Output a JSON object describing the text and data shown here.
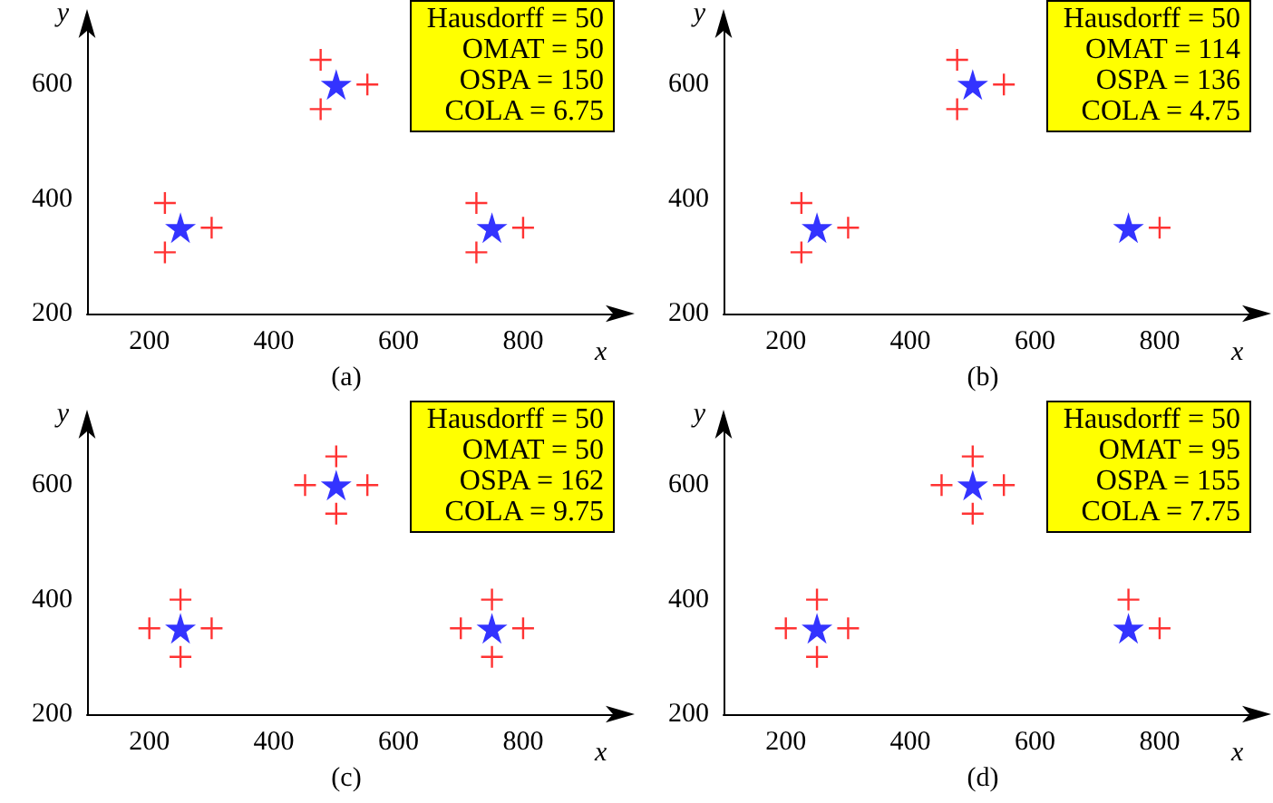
{
  "chart_data": [
    {
      "type": "scatter",
      "title": "(a)",
      "xlabel": "x",
      "ylabel": "y",
      "xlim": [
        100,
        950
      ],
      "ylim": [
        200,
        700
      ],
      "xticks": [
        200,
        400,
        600,
        800
      ],
      "yticks": [
        200,
        400,
        600
      ],
      "grid": false,
      "legend": false,
      "annotations": [
        "Hausdorff = 50",
        "OMAT = 50",
        "OSPA = 150",
        "COLA = 6.75"
      ],
      "series": [
        {
          "color": "#0000ff",
          "marker": "star",
          "x": [
            250,
            500,
            750
          ],
          "values": [
            350,
            600,
            350
          ]
        },
        {
          "color": "#ff0000",
          "marker": "cross",
          "x": [
            300,
            225,
            225,
            550,
            475,
            475,
            800,
            725,
            725
          ],
          "values": [
            350,
            393,
            307,
            600,
            643,
            557,
            350,
            393,
            307
          ]
        }
      ]
    },
    {
      "type": "scatter",
      "title": "(b)",
      "xlabel": "x",
      "ylabel": "y",
      "xlim": [
        100,
        950
      ],
      "ylim": [
        200,
        700
      ],
      "xticks": [
        200,
        400,
        600,
        800
      ],
      "yticks": [
        200,
        400,
        600
      ],
      "grid": false,
      "legend": false,
      "annotations": [
        "Hausdorff = 50",
        "OMAT = 114",
        "OSPA = 136",
        "COLA = 4.75"
      ],
      "series": [
        {
          "color": "#0000ff",
          "marker": "star",
          "x": [
            250,
            500,
            750
          ],
          "values": [
            350,
            600,
            350
          ]
        },
        {
          "color": "#ff0000",
          "marker": "cross",
          "x": [
            300,
            225,
            225,
            550,
            475,
            475,
            800
          ],
          "values": [
            350,
            393,
            307,
            600,
            643,
            557,
            350
          ]
        }
      ]
    },
    {
      "type": "scatter",
      "title": "(c)",
      "xlabel": "x",
      "ylabel": "y",
      "xlim": [
        100,
        950
      ],
      "ylim": [
        200,
        700
      ],
      "xticks": [
        200,
        400,
        600,
        800
      ],
      "yticks": [
        200,
        400,
        600
      ],
      "grid": false,
      "legend": false,
      "annotations": [
        "Hausdorff = 50",
        "OMAT = 50",
        "OSPA = 162",
        "COLA = 9.75"
      ],
      "series": [
        {
          "color": "#0000ff",
          "marker": "star",
          "x": [
            250,
            500,
            750
          ],
          "values": [
            350,
            600,
            350
          ]
        },
        {
          "color": "#ff0000",
          "marker": "cross",
          "x": [
            200,
            300,
            250,
            250,
            450,
            550,
            500,
            500,
            700,
            800,
            750,
            750
          ],
          "values": [
            350,
            350,
            400,
            300,
            600,
            600,
            650,
            550,
            350,
            350,
            400,
            300
          ]
        }
      ]
    },
    {
      "type": "scatter",
      "title": "(d)",
      "xlabel": "x",
      "ylabel": "y",
      "xlim": [
        100,
        950
      ],
      "ylim": [
        200,
        700
      ],
      "xticks": [
        200,
        400,
        600,
        800
      ],
      "yticks": [
        200,
        400,
        600
      ],
      "grid": false,
      "legend": false,
      "annotations": [
        "Hausdorff = 50",
        "OMAT = 95",
        "OSPA = 155",
        "COLA = 7.75"
      ],
      "series": [
        {
          "color": "#0000ff",
          "marker": "star",
          "x": [
            250,
            500,
            750
          ],
          "values": [
            350,
            600,
            350
          ]
        },
        {
          "color": "#ff0000",
          "marker": "cross",
          "x": [
            200,
            300,
            250,
            250,
            450,
            550,
            500,
            500,
            750,
            800
          ],
          "values": [
            350,
            350,
            400,
            300,
            600,
            600,
            650,
            550,
            400,
            350
          ]
        }
      ]
    }
  ]
}
